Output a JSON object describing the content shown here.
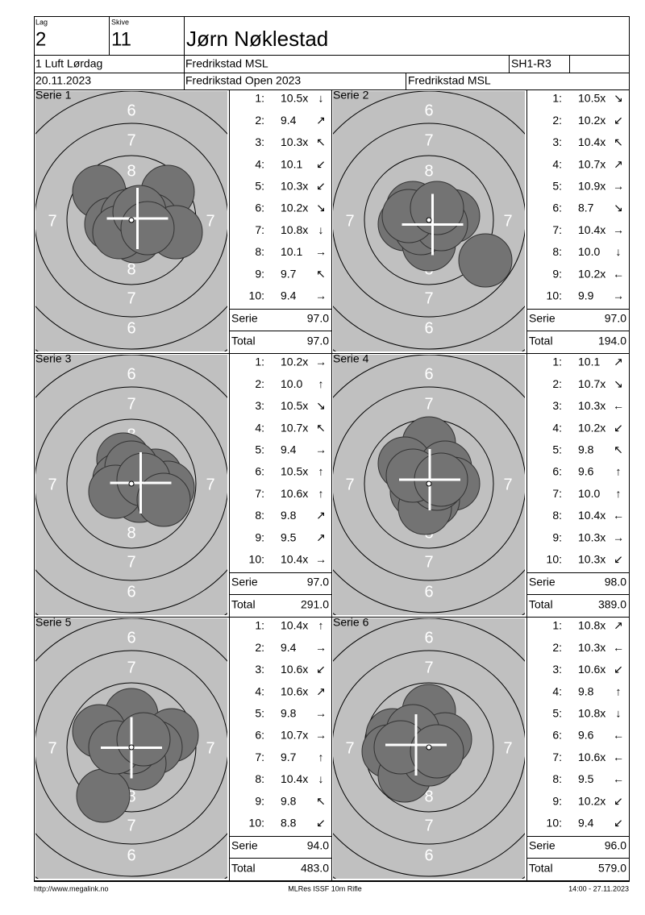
{
  "header": {
    "lag_label": "Lag",
    "lag": "2",
    "skive_label": "Skive",
    "skive": "11",
    "name": "Jørn Nøklestad",
    "class": "1 Luft Lørdag",
    "club": "Fredrikstad MSL",
    "relay": "SH1-R3",
    "date": "20.11.2023",
    "event": "Fredrikstad Open 2023",
    "organizer": "Fredrikstad MSL"
  },
  "target": {
    "ring_labels": [
      "6",
      "7",
      "8"
    ]
  },
  "shot_labels": [
    "1:",
    "2:",
    "3:",
    "4:",
    "5:",
    "6:",
    "7:",
    "8:",
    "9:",
    "10:"
  ],
  "serie_label": "Serie",
  "total_label": "Total",
  "series": [
    {
      "title": "Serie 1",
      "shots": [
        {
          "score": "10.5x",
          "dir": "↓"
        },
        {
          "score": "9.4",
          "dir": "↗"
        },
        {
          "score": "10.3x",
          "dir": "↖"
        },
        {
          "score": "10.1",
          "dir": "↙"
        },
        {
          "score": "10.3x",
          "dir": "↙"
        },
        {
          "score": "10.2x",
          "dir": "↘"
        },
        {
          "score": "10.8x",
          "dir": "↓"
        },
        {
          "score": "10.1",
          "dir": "→"
        },
        {
          "score": "9.7",
          "dir": "↖"
        },
        {
          "score": "9.4",
          "dir": "→"
        }
      ],
      "serie": "97.0",
      "total": "97.0"
    },
    {
      "title": "Serie 2",
      "shots": [
        {
          "score": "10.5x",
          "dir": "↘"
        },
        {
          "score": "10.2x",
          "dir": "↙"
        },
        {
          "score": "10.4x",
          "dir": "↖"
        },
        {
          "score": "10.7x",
          "dir": "↗"
        },
        {
          "score": "10.9x",
          "dir": "→"
        },
        {
          "score": "8.7",
          "dir": "↘"
        },
        {
          "score": "10.4x",
          "dir": "→"
        },
        {
          "score": "10.0",
          "dir": "↓"
        },
        {
          "score": "10.2x",
          "dir": "←"
        },
        {
          "score": "9.9",
          "dir": "→"
        }
      ],
      "serie": "97.0",
      "total": "194.0"
    },
    {
      "title": "Serie 3",
      "shots": [
        {
          "score": "10.2x",
          "dir": "→"
        },
        {
          "score": "10.0",
          "dir": "↑"
        },
        {
          "score": "10.5x",
          "dir": "↘"
        },
        {
          "score": "10.7x",
          "dir": "↖"
        },
        {
          "score": "9.4",
          "dir": "→"
        },
        {
          "score": "10.5x",
          "dir": "↑"
        },
        {
          "score": "10.6x",
          "dir": "↑"
        },
        {
          "score": "9.8",
          "dir": "↗"
        },
        {
          "score": "9.5",
          "dir": "↗"
        },
        {
          "score": "10.4x",
          "dir": "→"
        }
      ],
      "serie": "97.0",
      "total": "291.0"
    },
    {
      "title": "Serie 4",
      "shots": [
        {
          "score": "10.1",
          "dir": "↗"
        },
        {
          "score": "10.7x",
          "dir": "↘"
        },
        {
          "score": "10.3x",
          "dir": "←"
        },
        {
          "score": "10.2x",
          "dir": "↙"
        },
        {
          "score": "9.8",
          "dir": "↖"
        },
        {
          "score": "9.6",
          "dir": "↑"
        },
        {
          "score": "10.0",
          "dir": "↑"
        },
        {
          "score": "10.4x",
          "dir": "←"
        },
        {
          "score": "10.3x",
          "dir": "→"
        },
        {
          "score": "10.3x",
          "dir": "↙"
        }
      ],
      "serie": "98.0",
      "total": "389.0"
    },
    {
      "title": "Serie 5",
      "shots": [
        {
          "score": "10.4x",
          "dir": "↑"
        },
        {
          "score": "9.4",
          "dir": "→"
        },
        {
          "score": "10.6x",
          "dir": "↙"
        },
        {
          "score": "10.6x",
          "dir": "↗"
        },
        {
          "score": "9.8",
          "dir": "→"
        },
        {
          "score": "10.7x",
          "dir": "→"
        },
        {
          "score": "9.7",
          "dir": "↑"
        },
        {
          "score": "10.4x",
          "dir": "↓"
        },
        {
          "score": "9.8",
          "dir": "↖"
        },
        {
          "score": "8.8",
          "dir": "↙"
        }
      ],
      "serie": "94.0",
      "total": "483.0"
    },
    {
      "title": "Serie 6",
      "shots": [
        {
          "score": "10.8x",
          "dir": "↗"
        },
        {
          "score": "10.3x",
          "dir": "←"
        },
        {
          "score": "10.6x",
          "dir": "↙"
        },
        {
          "score": "9.8",
          "dir": "↑"
        },
        {
          "score": "10.8x",
          "dir": "↓"
        },
        {
          "score": "9.6",
          "dir": "←"
        },
        {
          "score": "10.6x",
          "dir": "←"
        },
        {
          "score": "9.5",
          "dir": "←"
        },
        {
          "score": "10.2x",
          "dir": "↙"
        },
        {
          "score": "9.4",
          "dir": "↙"
        }
      ],
      "serie": "96.0",
      "total": "579.0"
    }
  ],
  "footer": {
    "url": "http://www.megalink.no",
    "program": "MLRes ISSF 10m Rifle",
    "timestamp": "14:00 - 27.11.2023"
  }
}
